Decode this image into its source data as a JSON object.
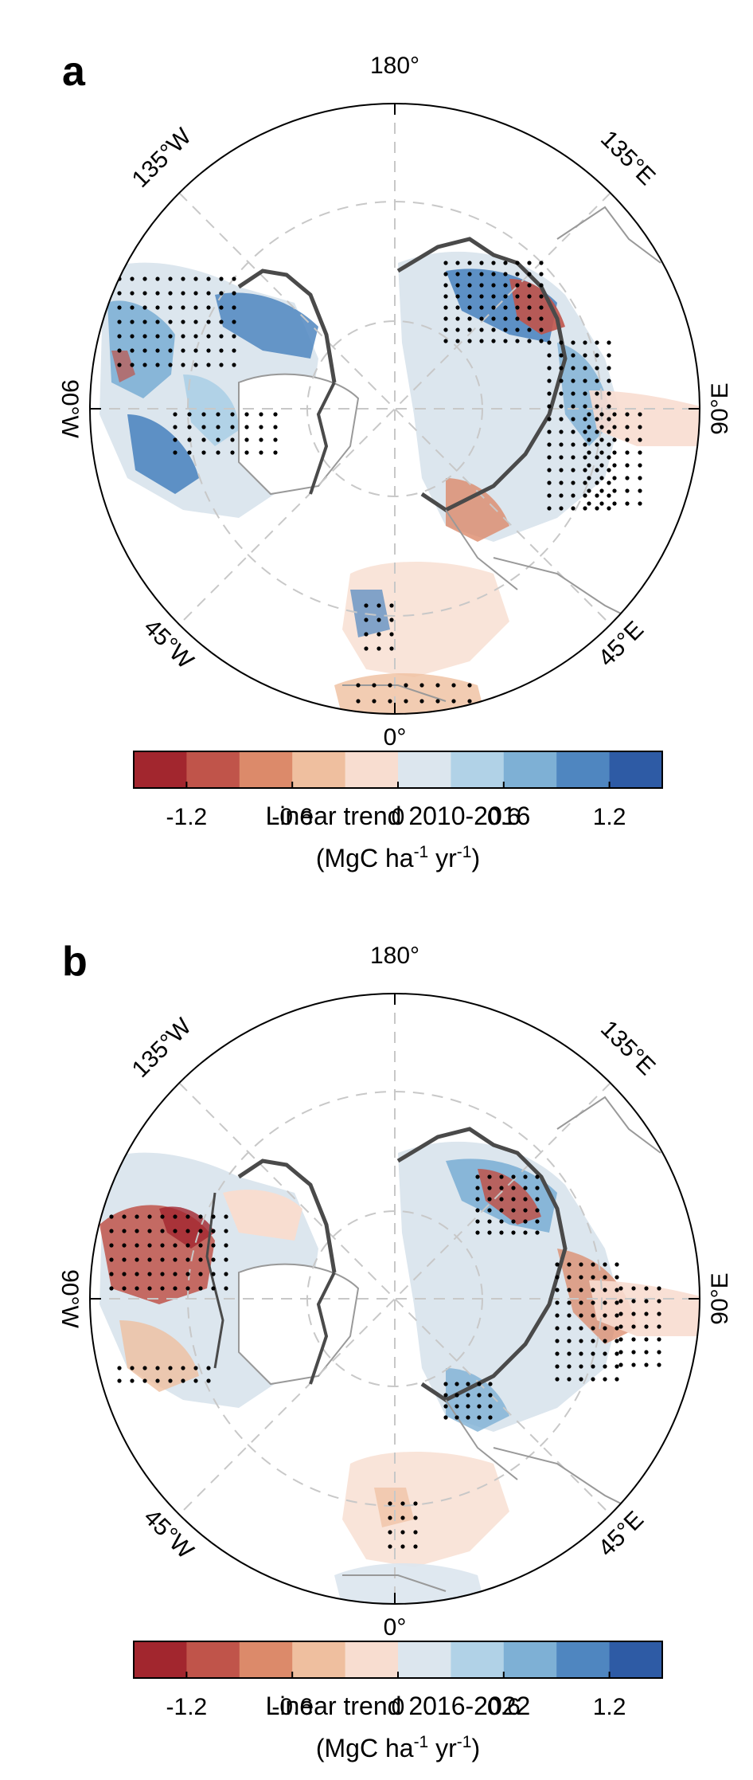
{
  "colors": {
    "scale": [
      "#a2262e",
      "#c0544a",
      "#dc8a6a",
      "#efbf9f",
      "#f8ddd0",
      "#dce6ee",
      "#b1d2e7",
      "#7eb0d5",
      "#4f86c0",
      "#2e5ba5"
    ],
    "coastline_light": "#999999",
    "boundary_dark": "#4a4a4a",
    "grid": "#c8c8c8",
    "stipple": "#000000"
  },
  "map": {
    "projection": "north polar stereographic",
    "longitude_labels": {
      "top": "180°",
      "upper_left": "135°W",
      "upper_right": "135°E",
      "left": "90°W",
      "right": "90°E",
      "lower_left": "45°W",
      "lower_right": "45°E",
      "bottom": "0°"
    }
  },
  "colorbar": {
    "range": [
      -1.5,
      1.5
    ],
    "bin_width": 0.3,
    "tick_values": [
      -1.2,
      -0.6,
      0,
      0.6,
      1.2
    ],
    "ticks": [
      "-1.2",
      "-0.6",
      "0",
      "0.6",
      "1.2"
    ],
    "units_prefix": "(MgC ha",
    "units_exp1": "-1",
    "units_mid": " yr",
    "units_exp2": "-1",
    "units_suffix": ")"
  },
  "panels": [
    {
      "letter": "a",
      "title": "Linear trend 2010-2016"
    },
    {
      "letter": "b",
      "title": "Linear trend 2016-2022"
    }
  ]
}
